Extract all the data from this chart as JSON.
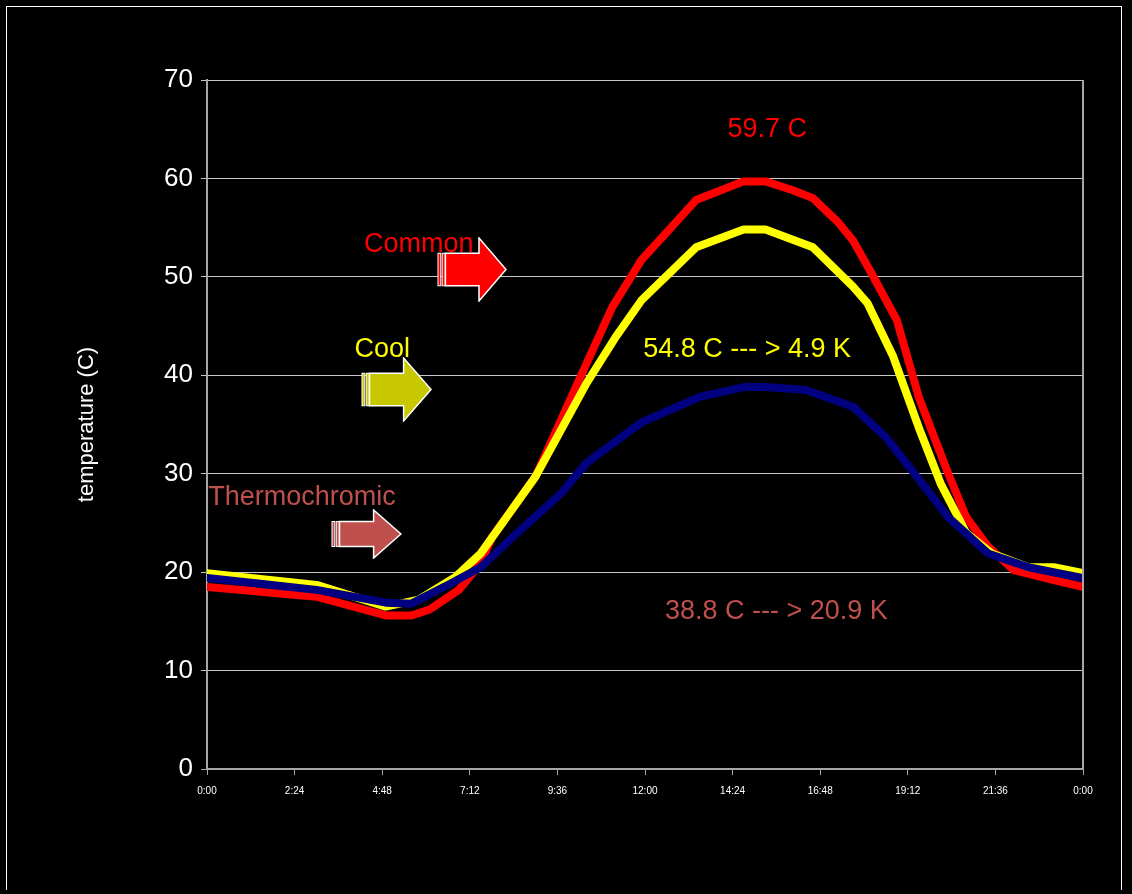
{
  "chart_data": {
    "type": "line",
    "ylabel": "temperature (C)",
    "xlim": [
      0,
      24
    ],
    "xticks": [
      {
        "value": 0,
        "label": "0:00"
      },
      {
        "value": 2.4,
        "label": "2:24"
      },
      {
        "value": 4.8,
        "label": "4:48"
      },
      {
        "value": 7.2,
        "label": "7:12"
      },
      {
        "value": 9.6,
        "label": "9:36"
      },
      {
        "value": 12,
        "label": "12:00"
      },
      {
        "value": 14.4,
        "label": "14:24"
      },
      {
        "value": 16.8,
        "label": "16:48"
      },
      {
        "value": 19.2,
        "label": "19:12"
      },
      {
        "value": 21.6,
        "label": "21:36"
      },
      {
        "value": 24,
        "label": "0:00"
      }
    ],
    "ylim": [
      0,
      70
    ],
    "yticks": [
      0,
      10,
      20,
      30,
      40,
      50,
      60,
      70
    ],
    "grid": "y",
    "legend": false,
    "marker": "none",
    "line_style": "solid",
    "annotations": [
      "59.7 C",
      "54.8 C --- > 4.9 K",
      "38.8 C --- > 20.9 K"
    ],
    "series": [
      {
        "name": "Common",
        "color": "#ff0000",
        "x": [
          0,
          3,
          4.9,
          5.6,
          6.1,
          6.9,
          7.5,
          7.8,
          9.0,
          10.4,
          11.1,
          11.9,
          13.4,
          14.7,
          15.3,
          16.05,
          16.6,
          17.3,
          17.7,
          18.2,
          18.9,
          19.5,
          20.3,
          20.8,
          21.4,
          22.1,
          23.2,
          24
        ],
        "values": [
          18.5,
          17.5,
          15.6,
          15.6,
          16.2,
          18.2,
          20.9,
          23.5,
          29.7,
          41.2,
          46.9,
          51.7,
          57.8,
          59.7,
          59.7,
          58.8,
          58,
          55.5,
          53.7,
          50.4,
          45.6,
          37.8,
          30.1,
          25.6,
          22.6,
          20.2,
          19.2,
          18.5
        ]
      },
      {
        "name": "Cool",
        "color": "#ffff00",
        "x": [
          0,
          3,
          4.9,
          5.8,
          6.8,
          7.5,
          9.0,
          10.4,
          11.2,
          11.9,
          13.4,
          14.7,
          15.3,
          16.6,
          17.7,
          18.1,
          18.8,
          19.5,
          20.1,
          20.8,
          21.5,
          22.5,
          23.2,
          24
        ],
        "values": [
          19.9,
          18.7,
          16.5,
          17.2,
          19.5,
          21.9,
          29.7,
          39.2,
          43.9,
          47.6,
          53,
          54.8,
          54.8,
          53,
          49,
          47.3,
          41.9,
          34.7,
          29,
          24,
          21.9,
          20.5,
          20.5,
          19.9
        ]
      },
      {
        "name": "Thermochromic",
        "color": "#000080",
        "x": [
          0,
          3,
          4.9,
          5.6,
          6.7,
          7.5,
          8.3,
          9.7,
          10.4,
          11.9,
          13,
          13.5,
          14.7,
          15.3,
          16.4,
          17.7,
          18.6,
          19.3,
          20.3,
          21.4,
          22.5,
          24
        ],
        "values": [
          19.4,
          18.2,
          16.9,
          16.8,
          18.9,
          20.5,
          23.3,
          28,
          31.1,
          35.2,
          37,
          37.8,
          38.8,
          38.8,
          38.5,
          36.8,
          33.7,
          30.4,
          25.6,
          21.9,
          20.5,
          19.4
        ]
      }
    ]
  }
}
